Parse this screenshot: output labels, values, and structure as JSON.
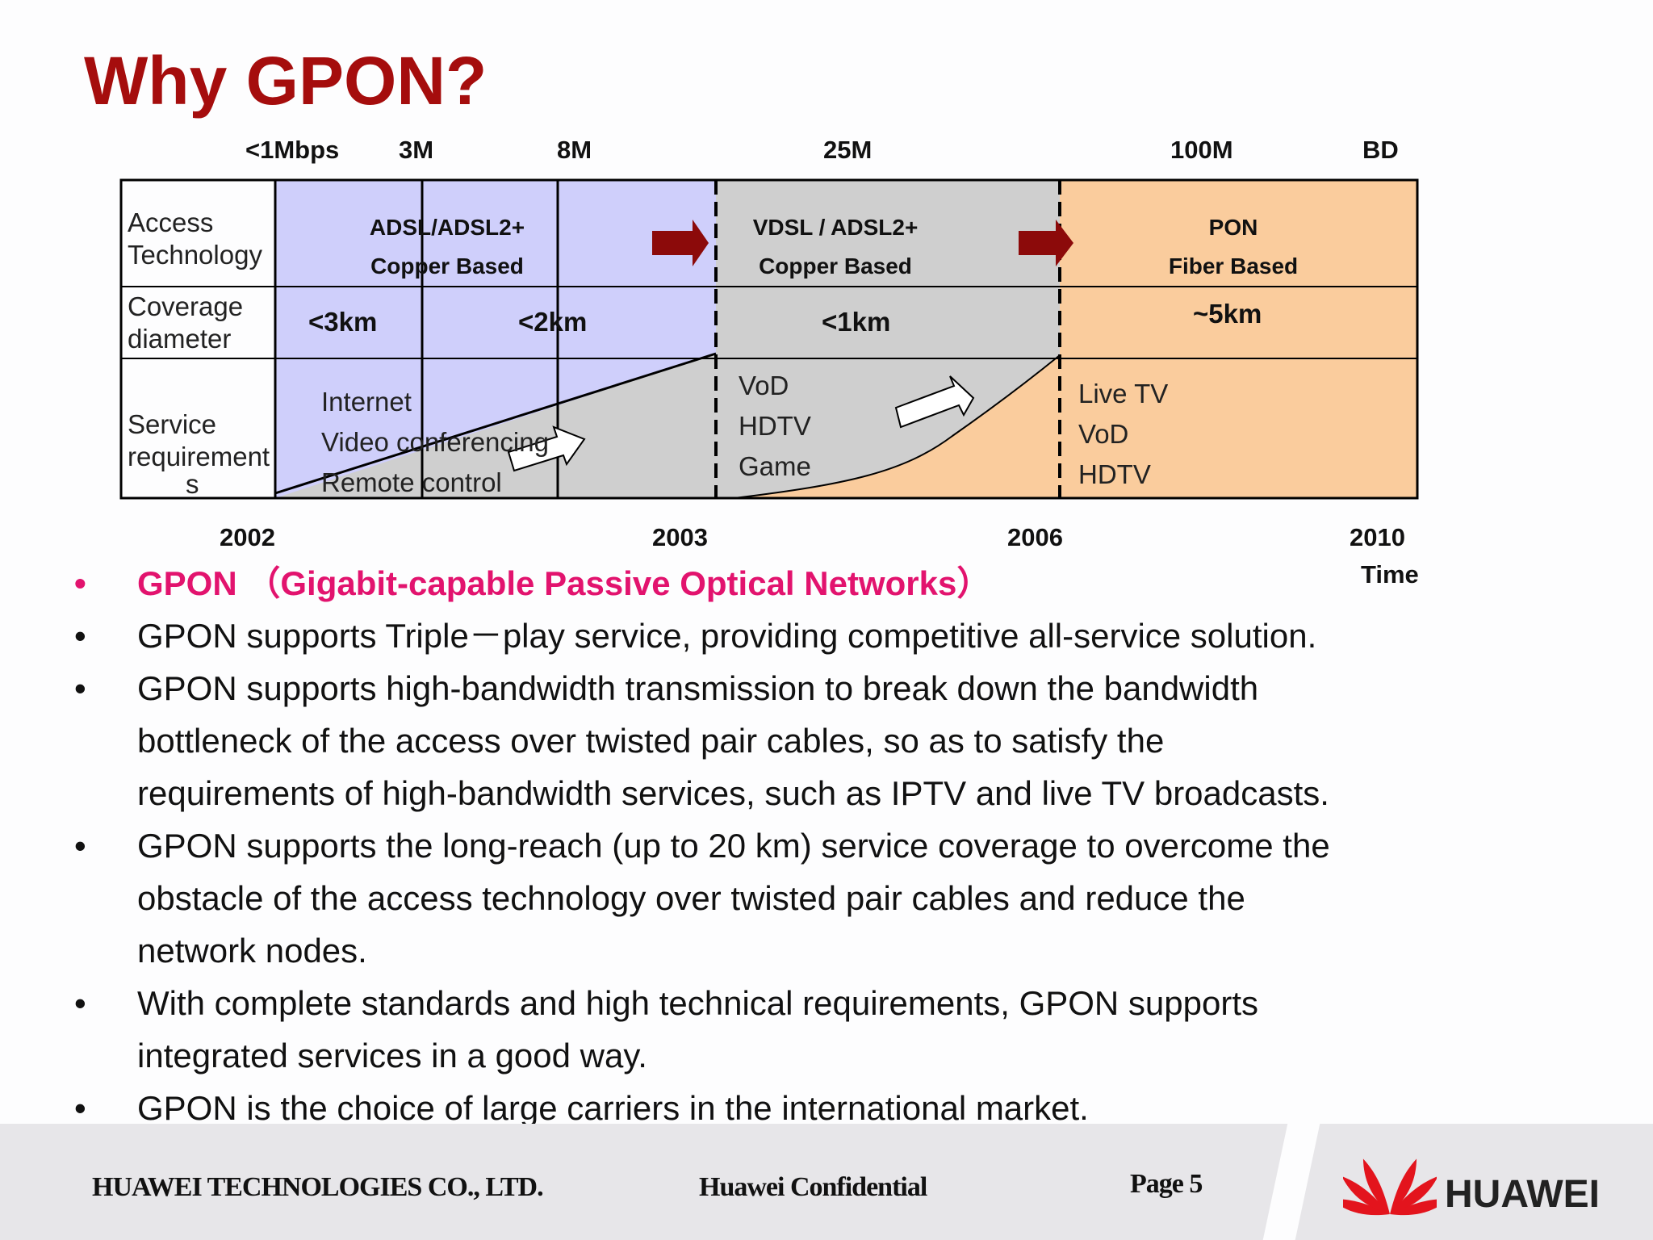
{
  "title": "Why GPON?",
  "bandwidth_labels": [
    "<1Mbps",
    "3M",
    "8M",
    "25M",
    "100M",
    "BD"
  ],
  "row_labels": {
    "access": [
      "Access",
      "Technology"
    ],
    "coverage": [
      "Coverage",
      "diameter"
    ],
    "service": [
      "Service",
      "requirement",
      "s"
    ]
  },
  "tech": {
    "adsl": [
      "ADSL/ADSL2+",
      "Copper Based"
    ],
    "vdsl": [
      "VDSL / ADSL2+",
      "Copper Based"
    ],
    "pon": [
      "PON",
      "Fiber Based"
    ]
  },
  "coverage": [
    "<3km",
    "<2km",
    "<1km",
    "~5km"
  ],
  "services": {
    "adsl": [
      "Internet",
      "Video conferencing",
      "Remote control"
    ],
    "vdsl": [
      "VoD",
      "HDTV",
      "Game"
    ],
    "pon": [
      "Live TV",
      "VoD",
      "HDTV"
    ]
  },
  "years": [
    "2002",
    "2003",
    "2006",
    "2010"
  ],
  "time_label": "Time",
  "bullets": [
    "GPON （Gigabit-capable Passive Optical Networks）",
    "GPON supports Triple－play service, providing competitive all-service solution.",
    "GPON supports high-bandwidth transmission to break down the bandwidth",
    "bottleneck of the access over twisted pair cables, so as to satisfy the",
    "requirements of high-bandwidth services, such as  IPTV and live TV broadcasts.",
    "GPON supports the long-reach (up to 20 km) service coverage to overcome the",
    "obstacle of the access technology over twisted pair cables and reduce the",
    "network nodes.",
    "With complete standards and high technical requirements, GPON supports",
    "integrated services in a good way.",
    "GPON is the choice of large carriers in the international market."
  ],
  "bullet_marker": "•",
  "footer": {
    "company": "HUAWEI TECHNOLOGIES CO., LTD.",
    "confidential": "Huawei Confidential",
    "page": "Page 5",
    "logo": "HUAWEI"
  },
  "colors": {
    "title": "#a50d0d",
    "adsl": "#cfcffb",
    "vdsl": "#cfcfcf",
    "pon": "#facc9d",
    "arrow": "#8c0a0a",
    "highlight": "#e2136e"
  }
}
